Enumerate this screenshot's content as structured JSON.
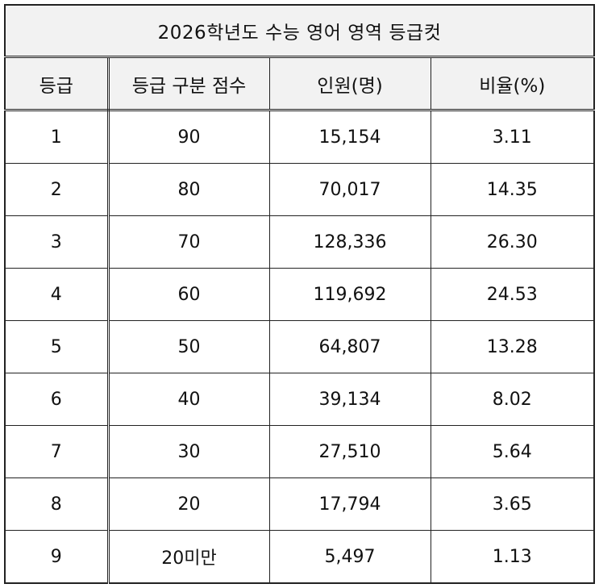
{
  "table": {
    "title": "2026학년도 수능 영어 영역 등급컷",
    "headers": [
      "등급",
      "등급 구분 점수",
      "인원(명)",
      "비율(%)"
    ],
    "rows": [
      [
        "1",
        "90",
        "15,154",
        "3.11"
      ],
      [
        "2",
        "80",
        "70,017",
        "14.35"
      ],
      [
        "3",
        "70",
        "128,336",
        "26.30"
      ],
      [
        "4",
        "60",
        "119,692",
        "24.53"
      ],
      [
        "5",
        "50",
        "64,807",
        "13.28"
      ],
      [
        "6",
        "40",
        "39,134",
        "8.02"
      ],
      [
        "7",
        "30",
        "27,510",
        "5.64"
      ],
      [
        "8",
        "20",
        "17,794",
        "3.65"
      ],
      [
        "9",
        "20미만",
        "5,497",
        "1.13"
      ]
    ]
  },
  "colors": {
    "header_background": "#f2f2f2",
    "border": "#222222",
    "text": "#111111"
  }
}
